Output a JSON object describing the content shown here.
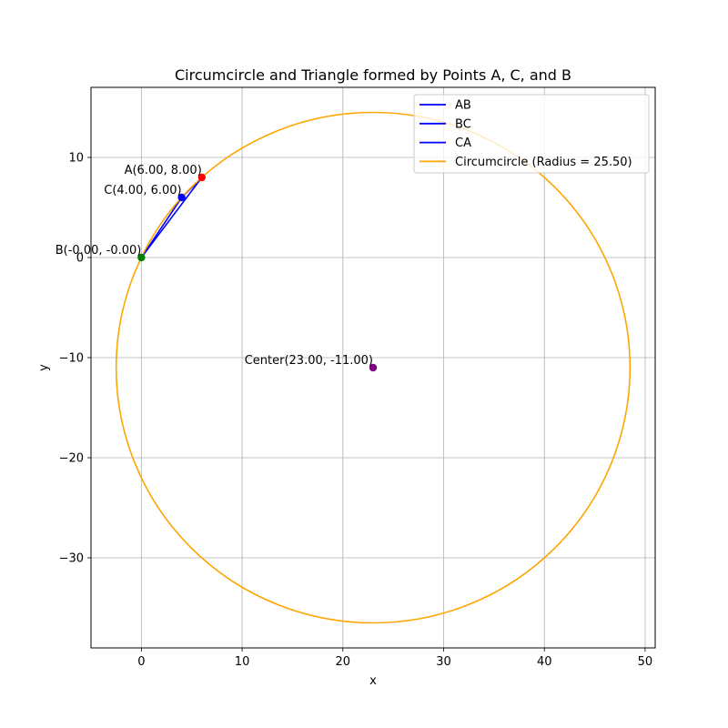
{
  "chart_data": {
    "type": "line",
    "title": "Circumcircle and Triangle formed by Points A, C, and B",
    "xlabel": "x",
    "ylabel": "y",
    "xlim": [
      -5,
      51
    ],
    "ylim": [
      -39,
      17
    ],
    "xticks": [
      0,
      10,
      20,
      30,
      40,
      50
    ],
    "yticks": [
      -30,
      -20,
      -10,
      0,
      10
    ],
    "xtick_labels": [
      "0",
      "10",
      "20",
      "30",
      "40",
      "50"
    ],
    "ytick_labels": [
      "−30",
      "−20",
      "−10",
      "0",
      "10"
    ],
    "grid": true,
    "legend_position": "top-right",
    "series": [
      {
        "name": "AB",
        "color": "#0000ff",
        "x": [
          6,
          0
        ],
        "y": [
          8,
          0
        ]
      },
      {
        "name": "BC",
        "color": "#0000ff",
        "x": [
          0,
          4
        ],
        "y": [
          0,
          6
        ]
      },
      {
        "name": "CA",
        "color": "#0000ff",
        "x": [
          4,
          6
        ],
        "y": [
          6,
          8
        ]
      },
      {
        "name": "Circumcircle (Radius = 25.50)",
        "color": "#ffa500",
        "center": [
          23,
          -11
        ],
        "radius": 25.5
      }
    ],
    "points": [
      {
        "label": "A(6.00, 8.00)",
        "x": 6,
        "y": 8,
        "color": "#ff0000"
      },
      {
        "label": "C(4.00, 6.00)",
        "x": 4,
        "y": 6,
        "color": "#0000ff"
      },
      {
        "label": "B(-0.00, -0.00)",
        "x": 0,
        "y": 0,
        "color": "#008000"
      },
      {
        "label": "Center(23.00, -11.00)",
        "x": 23,
        "y": -11,
        "color": "#800080"
      }
    ]
  }
}
